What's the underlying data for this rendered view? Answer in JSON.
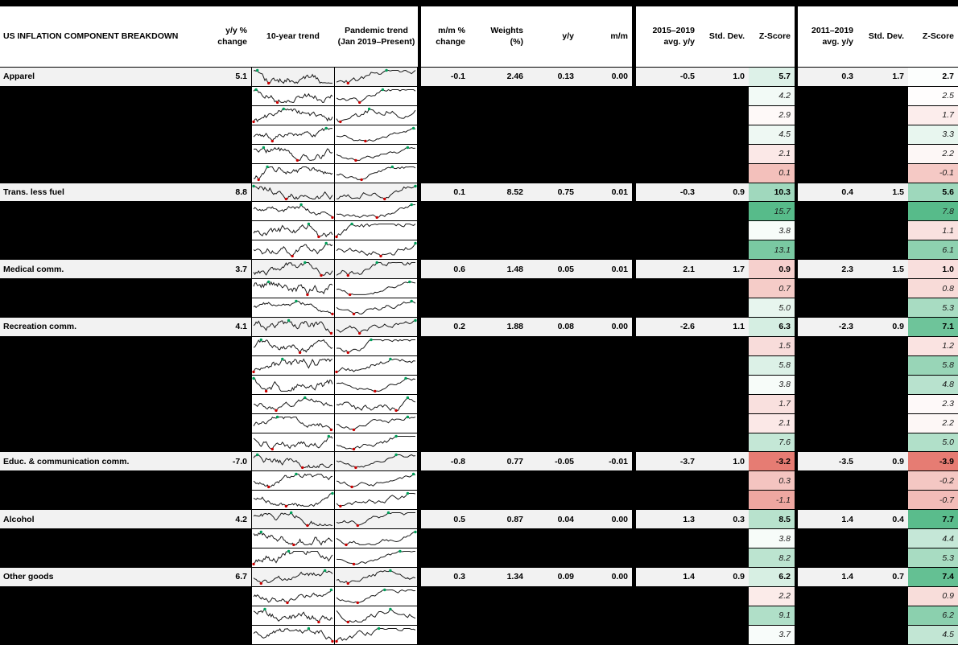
{
  "header": {
    "yy_change": "y/y %\nchange",
    "trend10": "10-year trend",
    "pandemic": "Pandemic trend\n(Jan 2019–Present)",
    "mm_change": "m/m %\nchange",
    "weights": "Weights\n(%)",
    "yy": "y/y",
    "mm": "m/m",
    "avg_2015": "2015–2019\navg. y/y",
    "std_dev_1": "Std. Dev.",
    "zscore_1": "Z-Score",
    "avg_2011": "2011–2019\navg. y/y",
    "std_dev_2": "Std. Dev.",
    "zscore_2": "Z-Score"
  },
  "chart_data": {
    "type": "table",
    "title": "US INFLATION COMPONENT BREAKDOWN",
    "columns": [
      "Component",
      "y/y % change",
      "10-year trend",
      "Pandemic trend (Jan 2019–Present)",
      "m/m % change",
      "Weights (%)",
      "y/y",
      "m/m",
      "2015–2019 avg. y/y",
      "Std. Dev.",
      "Z-Score",
      "2011–2019 avg. y/y",
      "Std. Dev.",
      "Z-Score"
    ],
    "rows": [
      {
        "name": "Apparel",
        "yy": "5.1",
        "mm": "-0.1",
        "weights": "2.46",
        "ctr_yy": "0.13",
        "ctr_mm": "0.00",
        "avg_2015": "-0.5",
        "sd_2015": "1.0",
        "z_2015": "5.7",
        "avg_2011": "0.3",
        "sd_2011": "1.7",
        "z_2011": "2.7"
      },
      {
        "z_2015": "4.2",
        "z_2011": "2.5"
      },
      {
        "z_2015": "2.9",
        "z_2011": "1.7"
      },
      {
        "z_2015": "4.5",
        "z_2011": "3.3"
      },
      {
        "z_2015": "2.1",
        "z_2011": "2.2"
      },
      {
        "z_2015": "0.1",
        "z_2011": "-0.1"
      },
      {
        "name": "Trans. less fuel",
        "yy": "8.8",
        "mm": "0.1",
        "weights": "8.52",
        "ctr_yy": "0.75",
        "ctr_mm": "0.01",
        "avg_2015": "-0.3",
        "sd_2015": "0.9",
        "z_2015": "10.3",
        "avg_2011": "0.4",
        "sd_2011": "1.5",
        "z_2011": "5.6"
      },
      {
        "z_2015": "15.7",
        "z_2011": "7.8"
      },
      {
        "z_2015": "3.8",
        "z_2011": "1.1"
      },
      {
        "z_2015": "13.1",
        "z_2011": "6.1"
      },
      {
        "name": "Medical comm.",
        "yy": "3.7",
        "mm": "0.6",
        "weights": "1.48",
        "ctr_yy": "0.05",
        "ctr_mm": "0.01",
        "avg_2015": "2.1",
        "sd_2015": "1.7",
        "z_2015": "0.9",
        "avg_2011": "2.3",
        "sd_2011": "1.5",
        "z_2011": "1.0"
      },
      {
        "z_2015": "0.7",
        "z_2011": "0.8"
      },
      {
        "z_2015": "5.0",
        "z_2011": "5.3"
      },
      {
        "name": "Recreation comm.",
        "yy": "4.1",
        "mm": "0.2",
        "weights": "1.88",
        "ctr_yy": "0.08",
        "ctr_mm": "0.00",
        "avg_2015": "-2.6",
        "sd_2015": "1.1",
        "z_2015": "6.3",
        "avg_2011": "-2.3",
        "sd_2011": "0.9",
        "z_2011": "7.1"
      },
      {
        "z_2015": "1.5",
        "z_2011": "1.2"
      },
      {
        "z_2015": "5.8",
        "z_2011": "5.8"
      },
      {
        "z_2015": "3.8",
        "z_2011": "4.8"
      },
      {
        "z_2015": "1.7",
        "z_2011": "2.3"
      },
      {
        "z_2015": "2.1",
        "z_2011": "2.2"
      },
      {
        "z_2015": "7.6",
        "z_2011": "5.0"
      },
      {
        "name": "Educ. & communication comm.",
        "yy": "-7.0",
        "mm": "-0.8",
        "weights": "0.77",
        "ctr_yy": "-0.05",
        "ctr_mm": "-0.01",
        "avg_2015": "-3.7",
        "sd_2015": "1.0",
        "z_2015": "-3.2",
        "avg_2011": "-3.5",
        "sd_2011": "0.9",
        "z_2011": "-3.9"
      },
      {
        "z_2015": "0.3",
        "z_2011": "-0.2"
      },
      {
        "z_2015": "-1.1",
        "z_2011": "-0.7"
      },
      {
        "name": "Alcohol",
        "yy": "4.2",
        "mm": "0.5",
        "weights": "0.87",
        "ctr_yy": "0.04",
        "ctr_mm": "0.00",
        "avg_2015": "1.3",
        "sd_2015": "0.3",
        "z_2015": "8.5",
        "avg_2011": "1.4",
        "sd_2011": "0.4",
        "z_2011": "7.7"
      },
      {
        "z_2015": "3.8",
        "z_2011": "4.4"
      },
      {
        "z_2015": "8.2",
        "z_2011": "5.3"
      },
      {
        "name": "Other goods",
        "yy": "6.7",
        "mm": "0.3",
        "weights": "1.34",
        "ctr_yy": "0.09",
        "ctr_mm": "0.00",
        "avg_2015": "1.4",
        "sd_2015": "0.9",
        "z_2015": "6.2",
        "avg_2011": "1.4",
        "sd_2011": "0.7",
        "z_2011": "7.4"
      },
      {
        "z_2015": "2.2",
        "z_2011": "0.9"
      },
      {
        "z_2015": "9.1",
        "z_2011": "6.2"
      },
      {
        "z_2015": "3.7",
        "z_2011": "4.5"
      }
    ]
  },
  "z_scales": {
    "z_2015": {
      "min": -3.2,
      "mid": 3.2,
      "max": 15.7
    },
    "z_2011": {
      "min": -3.9,
      "mid": 2.6,
      "max": 7.8
    }
  },
  "colors": {
    "negative": "#e67c73",
    "neutral": "#ffffff",
    "positive": "#57bb8a",
    "main_row_bg": "#f2f2f2",
    "row_bg": "#ffffff",
    "grid": "#000000",
    "sparkline_line": "#1a1a1a",
    "marker_low": "#cc0000",
    "marker_high": "#00a05a"
  }
}
